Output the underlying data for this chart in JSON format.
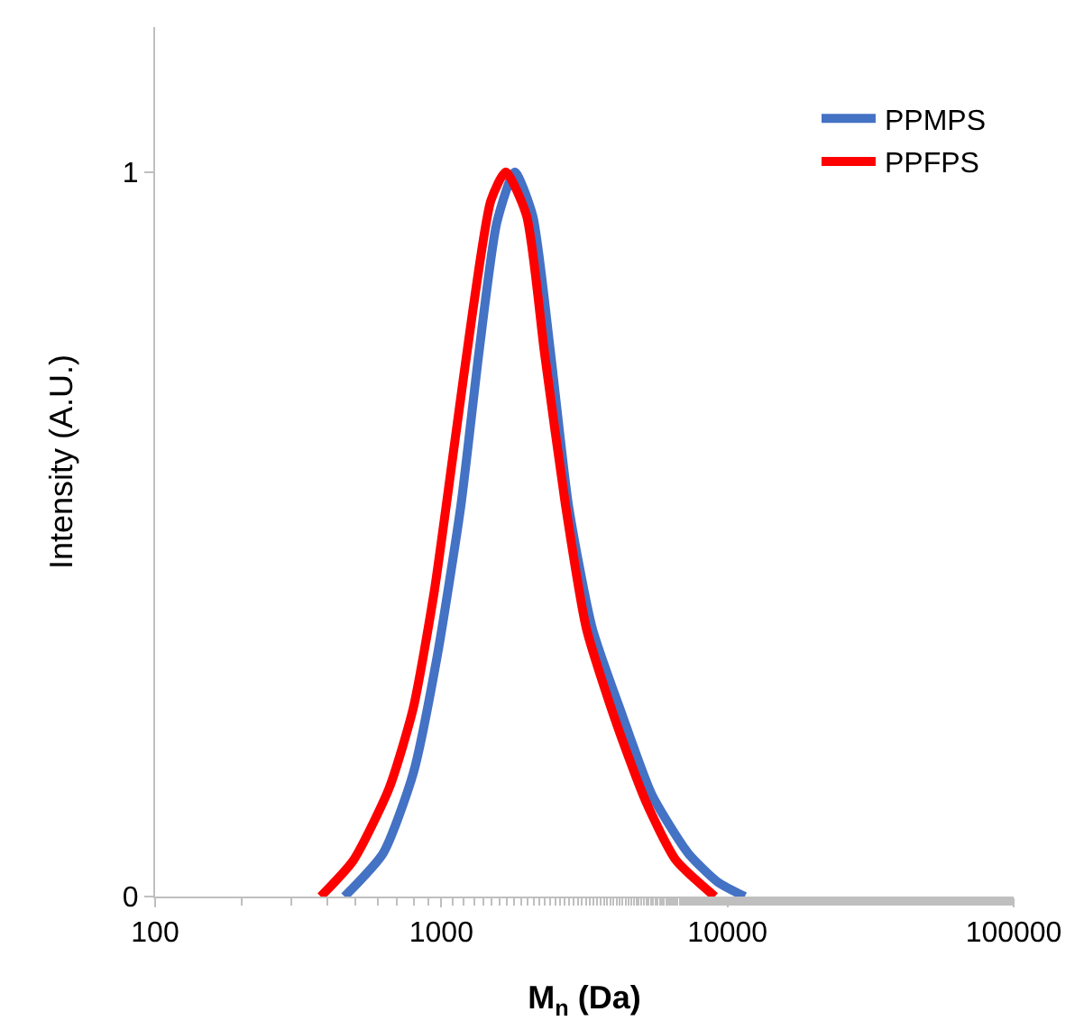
{
  "chart_data": {
    "type": "line",
    "xlabel": "M$_{n}$ (Da)",
    "ylabel": "Intensity (A.U.)",
    "log": "x",
    "xlim": [
      100,
      100000
    ],
    "xticks": [
      100,
      1000,
      10000,
      100000
    ],
    "ylim": [
      0,
      1.2
    ],
    "yticks": [
      0,
      1
    ],
    "grid": false,
    "legend": "top right",
    "line_style": "solid",
    "series": [
      {
        "name": "PPMPS",
        "color": "#4472c4",
        "x": [
          459,
          627,
          798,
          966,
          1171,
          1353,
          1563,
          1806,
          2085,
          2409,
          2782,
          3370,
          4290,
          5450,
          7280,
          9250,
          11500
        ],
        "values": [
          0,
          0.06,
          0.17,
          0.33,
          0.54,
          0.75,
          0.93,
          1,
          0.94,
          0.75,
          0.54,
          0.37,
          0.25,
          0.14,
          0.06,
          0.02,
          0
        ]
      },
      {
        "name": "PPFPS",
        "color": "#ff0000",
        "x": [
          379,
          493,
          658,
          798,
          944,
          1117,
          1290,
          1489,
          1679,
          1985,
          2295,
          2717,
          3213,
          4083,
          5200,
          6610,
          9040
        ],
        "values": [
          0,
          0.05,
          0.15,
          0.26,
          0.42,
          0.63,
          0.81,
          0.96,
          1,
          0.94,
          0.75,
          0.54,
          0.37,
          0.24,
          0.13,
          0.05,
          0
        ]
      }
    ]
  }
}
